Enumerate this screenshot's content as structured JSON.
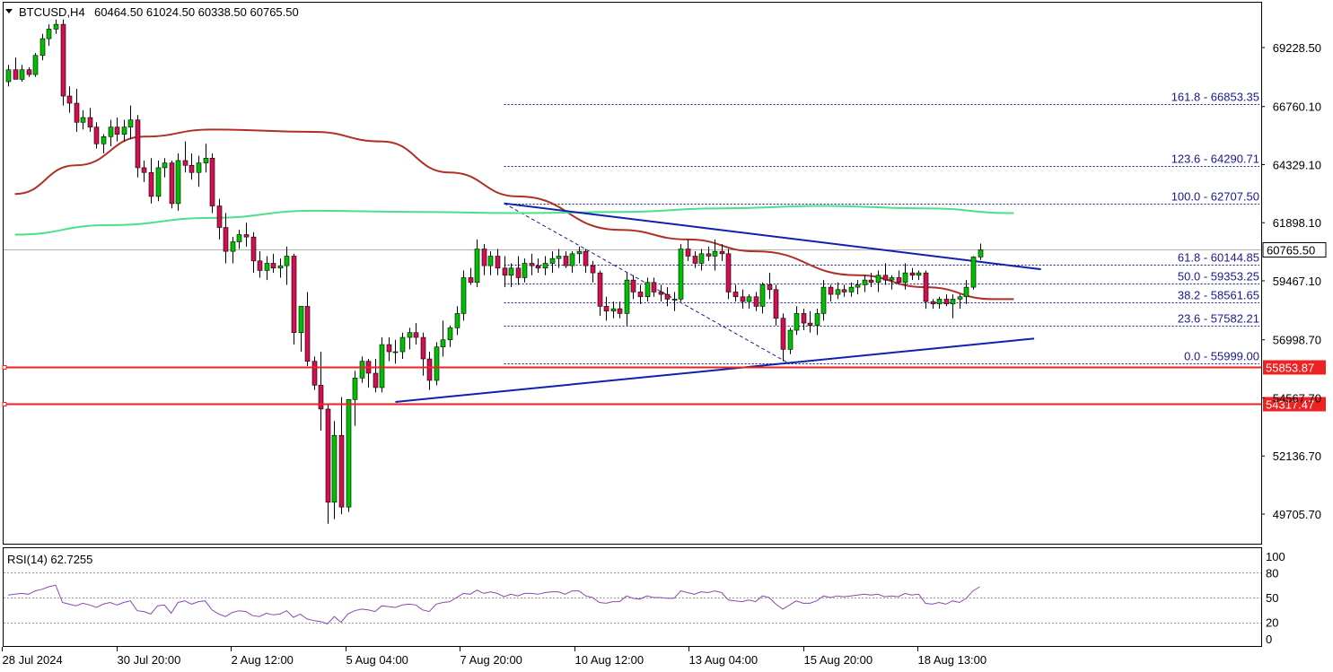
{
  "header": {
    "symbol": "BTCUSD,H4",
    "ohlc": "60464.50 61024.50 60338.50 60765.50"
  },
  "rsi_label": "RSI(14) 62.7255",
  "current_price_label": "60765.50",
  "colors": {
    "bull": "#00c000",
    "bear": "#d01050",
    "sma_red": "#b03028",
    "sma_green": "#4de08a",
    "trend": "#1020b0",
    "support": "#ee2222",
    "fib": "#1a1a8c",
    "rsi": "#8a48b0",
    "grid_dotted": "#555555"
  },
  "chart_data": [
    {
      "type": "candlestick",
      "symbol": "BTCUSD",
      "timeframe": "H4",
      "ohlc": {
        "open": 60464.5,
        "high": 61024.5,
        "low": 60338.5,
        "close": 60765.5
      },
      "y_range": [
        48400,
        71000
      ],
      "y_ticks": [
        "69228.50",
        "66760.10",
        "64329.10",
        "61898.10",
        "59467.10",
        "56998.70",
        "54567.70",
        "52136.70",
        "49705.70"
      ],
      "x_ticks": [
        "28 Jul 2024",
        "30 Jul 20:00",
        "2 Aug 12:00",
        "5 Aug 04:00",
        "7 Aug 20:00",
        "10 Aug 12:00",
        "13 Aug 04:00",
        "15 Aug 20:00",
        "18 Aug 13:00"
      ],
      "candles": [
        [
          67800,
          68500,
          67600,
          68300
        ],
        [
          68300,
          68800,
          67900,
          67900
        ],
        [
          67900,
          68500,
          67800,
          68300
        ],
        [
          68300,
          68400,
          68000,
          68100
        ],
        [
          68100,
          69000,
          68000,
          68900
        ],
        [
          68900,
          69800,
          68700,
          69600
        ],
        [
          69600,
          70200,
          69300,
          70000
        ],
        [
          70000,
          70400,
          69800,
          70200
        ],
        [
          70200,
          70400,
          66800,
          67200
        ],
        [
          67200,
          67600,
          66500,
          66900
        ],
        [
          66900,
          67500,
          65700,
          66100
        ],
        [
          66100,
          66600,
          65800,
          66300
        ],
        [
          66300,
          66700,
          65700,
          65900
        ],
        [
          65900,
          66100,
          65000,
          65200
        ],
        [
          65200,
          65600,
          64800,
          65500
        ],
        [
          65500,
          66200,
          65100,
          65900
        ],
        [
          65900,
          66300,
          65300,
          65600
        ],
        [
          65600,
          66200,
          65300,
          65900
        ],
        [
          65900,
          66800,
          65400,
          66200
        ],
        [
          66200,
          66400,
          63800,
          64200
        ],
        [
          64200,
          64500,
          63600,
          64000
        ],
        [
          64000,
          64600,
          62700,
          63000
        ],
        [
          63000,
          64500,
          62800,
          64200
        ],
        [
          64200,
          64600,
          63800,
          64400
        ],
        [
          64400,
          64500,
          62500,
          62700
        ],
        [
          62700,
          64800,
          62400,
          64500
        ],
        [
          64500,
          65300,
          64000,
          64300
        ],
        [
          64300,
          64800,
          63700,
          64000
        ],
        [
          64000,
          64700,
          63400,
          64400
        ],
        [
          64400,
          65200,
          64000,
          64600
        ],
        [
          64600,
          64800,
          62300,
          62600
        ],
        [
          62600,
          62900,
          61200,
          61700
        ],
        [
          61700,
          62300,
          60200,
          60700
        ],
        [
          60700,
          61300,
          60200,
          61100
        ],
        [
          61100,
          61600,
          60800,
          61400
        ],
        [
          61400,
          61900,
          60900,
          61300
        ],
        [
          61300,
          61500,
          59800,
          60300
        ],
        [
          60300,
          60700,
          59600,
          59900
        ],
        [
          59900,
          60500,
          59500,
          60200
        ],
        [
          60200,
          60600,
          59800,
          60000
        ],
        [
          60000,
          60400,
          59600,
          60100
        ],
        [
          60100,
          60900,
          59300,
          60500
        ],
        [
          60500,
          60600,
          56800,
          57300
        ],
        [
          57300,
          58300,
          56500,
          58400
        ],
        [
          58400,
          59000,
          55900,
          56100
        ],
        [
          56100,
          56300,
          54900,
          55100
        ],
        [
          55100,
          56500,
          53200,
          54100
        ],
        [
          54100,
          54300,
          49300,
          50200
        ],
        [
          50200,
          53600,
          49500,
          53000
        ],
        [
          53000,
          54600,
          49700,
          50000
        ],
        [
          50000,
          54400,
          49800,
          54500
        ],
        [
          54500,
          55700,
          53400,
          55400
        ],
        [
          55400,
          56300,
          55200,
          56100
        ],
        [
          56100,
          56200,
          55000,
          55600
        ],
        [
          55600,
          56200,
          54800,
          55000
        ],
        [
          55000,
          57100,
          54800,
          56800
        ],
        [
          56800,
          57100,
          56100,
          56500
        ],
        [
          56500,
          57000,
          56000,
          56500
        ],
        [
          56500,
          57300,
          56200,
          57100
        ],
        [
          57100,
          57500,
          56600,
          57300
        ],
        [
          57300,
          57700,
          56800,
          57100
        ],
        [
          57100,
          57300,
          55500,
          56200
        ],
        [
          56200,
          56500,
          54900,
          55300
        ],
        [
          55300,
          56900,
          55100,
          56700
        ],
        [
          56700,
          57800,
          56300,
          57000
        ],
        [
          57000,
          57600,
          56700,
          57500
        ],
        [
          57500,
          58400,
          57200,
          58100
        ],
        [
          58100,
          59900,
          57800,
          59600
        ],
        [
          59600,
          60000,
          59300,
          59400
        ],
        [
          59400,
          61200,
          59200,
          60800
        ],
        [
          60800,
          61000,
          59700,
          60100
        ],
        [
          60100,
          60700,
          59700,
          60500
        ],
        [
          60500,
          60800,
          59700,
          60000
        ],
        [
          60000,
          60500,
          59200,
          59700
        ],
        [
          59700,
          60200,
          59200,
          60000
        ],
        [
          60000,
          60500,
          59300,
          59600
        ],
        [
          59600,
          60400,
          59400,
          60200
        ],
        [
          60200,
          60600,
          59700,
          60100
        ],
        [
          60100,
          60400,
          59800,
          60000
        ],
        [
          60000,
          60500,
          59700,
          60200
        ],
        [
          60200,
          60700,
          59800,
          60400
        ],
        [
          60400,
          60800,
          60000,
          60500
        ],
        [
          60500,
          60700,
          60000,
          60100
        ],
        [
          60100,
          60700,
          59800,
          60600
        ],
        [
          60600,
          60900,
          60200,
          60700
        ],
        [
          60700,
          60800,
          59800,
          60100
        ],
        [
          60100,
          60300,
          59400,
          59800
        ],
        [
          59800,
          59900,
          58000,
          58400
        ],
        [
          58400,
          58800,
          57800,
          58200
        ],
        [
          58200,
          58600,
          57900,
          58300
        ],
        [
          58300,
          58600,
          57900,
          58100
        ],
        [
          58100,
          59800,
          57600,
          59500
        ],
        [
          59500,
          59700,
          58700,
          59000
        ],
        [
          59000,
          59300,
          58500,
          58800
        ],
        [
          58800,
          59600,
          58600,
          59400
        ],
        [
          59400,
          59600,
          58800,
          59000
        ],
        [
          59000,
          59300,
          58600,
          58900
        ],
        [
          58900,
          59200,
          58400,
          58700
        ],
        [
          58700,
          59000,
          58200,
          58700
        ],
        [
          58700,
          61000,
          58600,
          60800
        ],
        [
          60800,
          61200,
          60300,
          60500
        ],
        [
          60500,
          60700,
          60000,
          60200
        ],
        [
          60200,
          60800,
          59900,
          60600
        ],
        [
          60600,
          60900,
          60300,
          60500
        ],
        [
          60500,
          61200,
          59900,
          60700
        ],
        [
          60700,
          61000,
          60300,
          60600
        ],
        [
          60600,
          60800,
          58700,
          59000
        ],
        [
          59000,
          59300,
          58600,
          58800
        ],
        [
          58800,
          59100,
          58300,
          58600
        ],
        [
          58600,
          58900,
          58300,
          58800
        ],
        [
          58800,
          59000,
          58200,
          58400
        ],
        [
          58400,
          59400,
          58100,
          59300
        ],
        [
          59300,
          59800,
          58700,
          59100
        ],
        [
          59100,
          59300,
          57600,
          57900
        ],
        [
          57900,
          58100,
          56100,
          56600
        ],
        [
          56600,
          57500,
          56400,
          57400
        ],
        [
          57400,
          58400,
          57200,
          58100
        ],
        [
          58100,
          58300,
          57400,
          57700
        ],
        [
          57700,
          58200,
          57300,
          57600
        ],
        [
          57600,
          58300,
          57200,
          58100
        ],
        [
          58100,
          59500,
          57800,
          59200
        ],
        [
          59200,
          59300,
          58600,
          58900
        ],
        [
          58900,
          59400,
          58700,
          59100
        ],
        [
          59100,
          59300,
          58800,
          59000
        ],
        [
          59000,
          59400,
          58800,
          59200
        ],
        [
          59200,
          59500,
          58900,
          59300
        ],
        [
          59300,
          59700,
          59000,
          59500
        ],
        [
          59500,
          59800,
          59200,
          59400
        ],
        [
          59400,
          59900,
          59000,
          59700
        ],
        [
          59700,
          60200,
          59300,
          59500
        ],
        [
          59500,
          59700,
          59100,
          59600
        ],
        [
          59600,
          59900,
          59300,
          59400
        ],
        [
          59400,
          60200,
          59100,
          59800
        ],
        [
          59800,
          60000,
          59500,
          59700
        ],
        [
          59700,
          59900,
          59500,
          59800
        ],
        [
          59800,
          59900,
          58300,
          58600
        ],
        [
          58600,
          58700,
          58300,
          58500
        ],
        [
          58500,
          58800,
          58300,
          58700
        ],
        [
          58700,
          58900,
          58400,
          58500
        ],
        [
          58500,
          58900,
          57900,
          58700
        ],
        [
          58700,
          58900,
          58300,
          58800
        ],
        [
          58800,
          59500,
          58500,
          59200
        ],
        [
          59200,
          60500,
          59100,
          60464.5
        ],
        [
          60464.5,
          61024.5,
          60338.5,
          60765.5
        ]
      ],
      "sma_red": [
        [
          1,
          63100
        ],
        [
          10,
          64300
        ],
        [
          20,
          65500
        ],
        [
          30,
          65800
        ],
        [
          45,
          65700
        ],
        [
          55,
          65300
        ],
        [
          65,
          64000
        ],
        [
          75,
          63000
        ],
        [
          90,
          61600
        ],
        [
          100,
          61200
        ],
        [
          110,
          60700
        ],
        [
          125,
          59700
        ],
        [
          135,
          59200
        ],
        [
          145,
          58700
        ],
        [
          148,
          58700
        ]
      ],
      "sma_green": [
        [
          1,
          61400
        ],
        [
          15,
          61800
        ],
        [
          30,
          62100
        ],
        [
          45,
          62400
        ],
        [
          60,
          62350
        ],
        [
          75,
          62300
        ],
        [
          90,
          62350
        ],
        [
          105,
          62500
        ],
        [
          120,
          62600
        ],
        [
          135,
          62500
        ],
        [
          148,
          62300
        ]
      ],
      "fibonacci": {
        "levels": [
          {
            "label": "161.8 - 66853.35",
            "price": 66853.35
          },
          {
            "label": "123.6 - 64290.71",
            "price": 64290.71
          },
          {
            "label": "100.0 - 62707.50",
            "price": 62707.5
          },
          {
            "label": "61.8 - 60144.85",
            "price": 60144.85
          },
          {
            "label": "50.0 - 59353.25",
            "price": 59353.25
          },
          {
            "label": "38.2 - 58561.65",
            "price": 58561.65
          },
          {
            "label": "23.6 - 57582.21",
            "price": 57582.21
          },
          {
            "label": "0.0 - 55999.00",
            "price": 55999.0
          }
        ]
      },
      "trendlines": [
        {
          "from": [
            73,
            62707.5
          ],
          "to": [
            152,
            59950
          ]
        },
        {
          "from": [
            57,
            54400
          ],
          "to": [
            151,
            57050
          ]
        }
      ],
      "fib_anchor_line": {
        "from": [
          73,
          62707.5
        ],
        "to": [
          115,
          55999
        ]
      },
      "support_lines": [
        {
          "price": 55853.87,
          "label": "55853.87"
        },
        {
          "price": 54317.47,
          "label": "54317.47"
        }
      ],
      "y_tick_partial": "54567.70",
      "current_price": 60765.5
    },
    {
      "type": "line",
      "name": "RSI(14)",
      "value_label": "62.7255",
      "y_range": [
        0,
        100
      ],
      "y_ticks": [
        "100",
        "80",
        "50",
        "20",
        "0"
      ],
      "values": [
        53,
        54,
        55,
        54,
        58,
        60,
        63,
        65,
        44,
        42,
        40,
        43,
        41,
        38,
        42,
        44,
        41,
        44,
        46,
        34,
        33,
        30,
        40,
        41,
        31,
        44,
        46,
        42,
        45,
        46,
        35,
        30,
        27,
        32,
        34,
        33,
        28,
        27,
        31,
        29,
        30,
        34,
        26,
        30,
        24,
        22,
        21,
        18,
        27,
        20,
        30,
        34,
        36,
        35,
        33,
        40,
        39,
        38,
        41,
        42,
        41,
        35,
        33,
        42,
        44,
        45,
        50,
        55,
        54,
        59,
        55,
        57,
        55,
        51,
        54,
        52,
        55,
        55,
        54,
        56,
        57,
        57,
        54,
        58,
        58,
        52,
        50,
        44,
        43,
        45,
        45,
        52,
        49,
        48,
        52,
        50,
        50,
        49,
        49,
        58,
        56,
        54,
        57,
        56,
        58,
        56,
        47,
        46,
        45,
        47,
        45,
        52,
        50,
        42,
        36,
        41,
        46,
        43,
        43,
        46,
        52,
        50,
        52,
        51,
        52,
        53,
        54,
        53,
        54,
        51,
        52,
        51,
        55,
        53,
        54,
        43,
        42,
        44,
        42,
        46,
        44,
        49,
        58,
        63
      ]
    }
  ]
}
